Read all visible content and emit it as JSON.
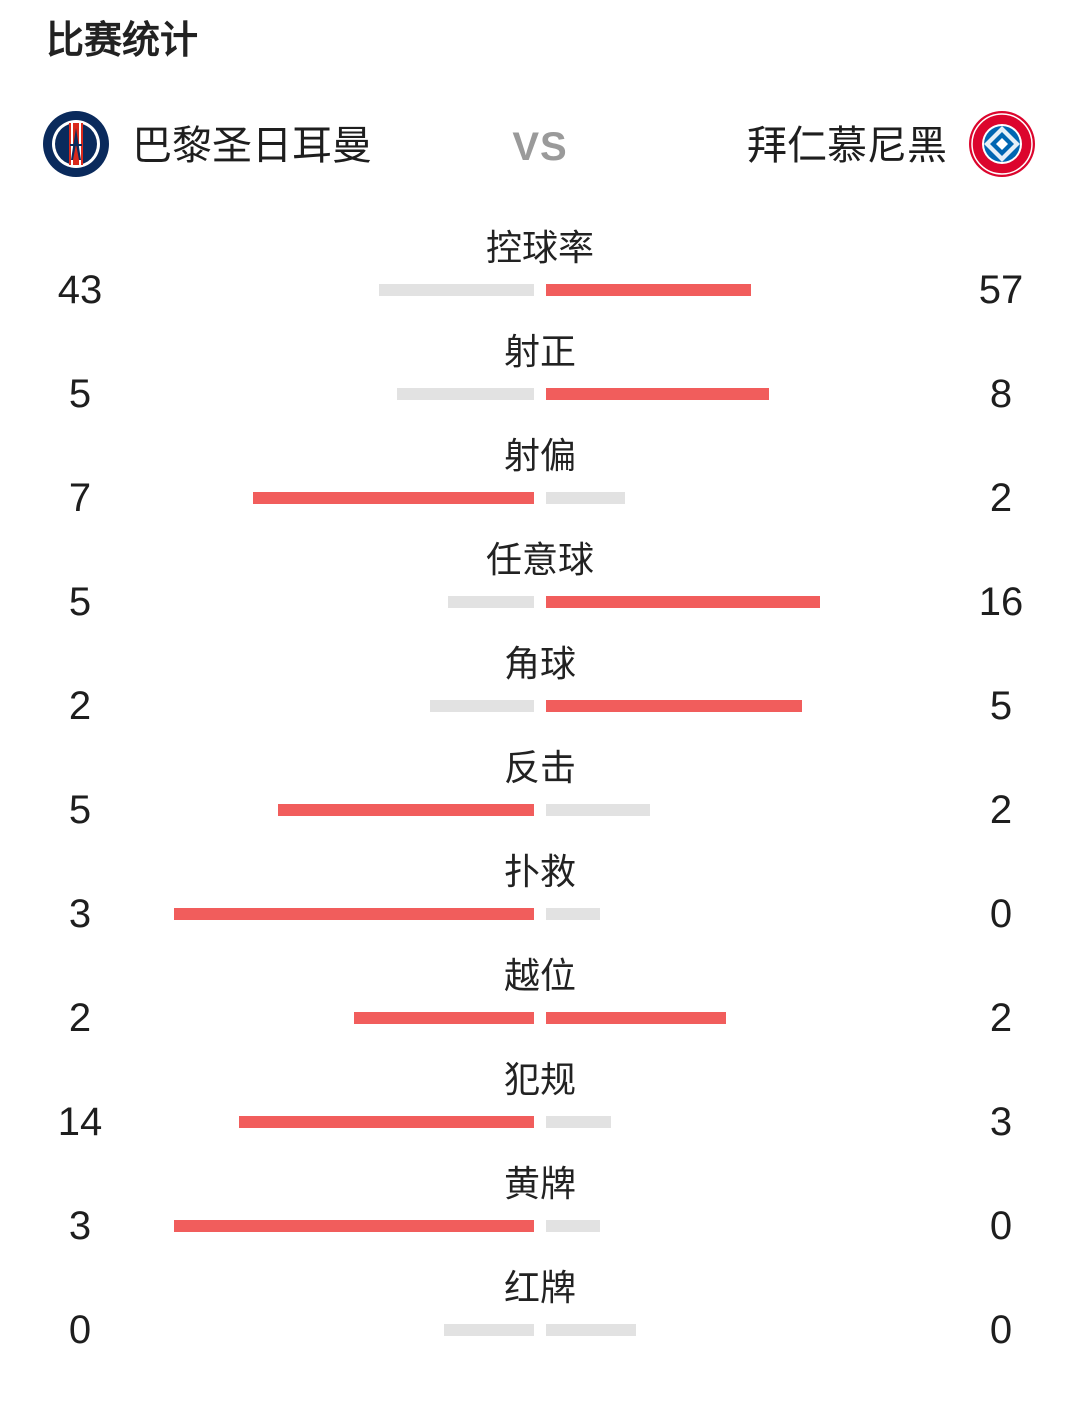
{
  "page_title": "比赛统计",
  "vs_label": "VS",
  "home_team": {
    "name": "巴黎圣日耳曼",
    "badge_icon": "psg-crest-icon"
  },
  "away_team": {
    "name": "拜仁慕尼黑",
    "badge_icon": "bayern-crest-icon"
  },
  "colors": {
    "leader_bar": "#f15d5c",
    "trailer_bar": "#e2e2e2"
  },
  "stats": [
    {
      "label": "控球率",
      "home": "43",
      "away": "57",
      "home_share": 0.43,
      "away_share": 0.57
    },
    {
      "label": "射正",
      "home": "5",
      "away": "8",
      "home_share": 0.38,
      "away_share": 0.62
    },
    {
      "label": "射偏",
      "home": "7",
      "away": "2",
      "home_share": 0.78,
      "away_share": 0.22
    },
    {
      "label": "任意球",
      "home": "5",
      "away": "16",
      "home_share": 0.24,
      "away_share": 0.76
    },
    {
      "label": "角球",
      "home": "2",
      "away": "5",
      "home_share": 0.29,
      "away_share": 0.71
    },
    {
      "label": "反击",
      "home": "5",
      "away": "2",
      "home_share": 0.71,
      "away_share": 0.29
    },
    {
      "label": "扑救",
      "home": "3",
      "away": "0",
      "home_share": 1.0,
      "away_share": 0.15
    },
    {
      "label": "越位",
      "home": "2",
      "away": "2",
      "home_share": 0.5,
      "away_share": 0.5
    },
    {
      "label": "犯规",
      "home": "14",
      "away": "3",
      "home_share": 0.82,
      "away_share": 0.18
    },
    {
      "label": "黄牌",
      "home": "3",
      "away": "0",
      "home_share": 1.0,
      "away_share": 0.15
    },
    {
      "label": "红牌",
      "home": "0",
      "away": "0",
      "home_share": 0.25,
      "away_share": 0.25
    }
  ]
}
